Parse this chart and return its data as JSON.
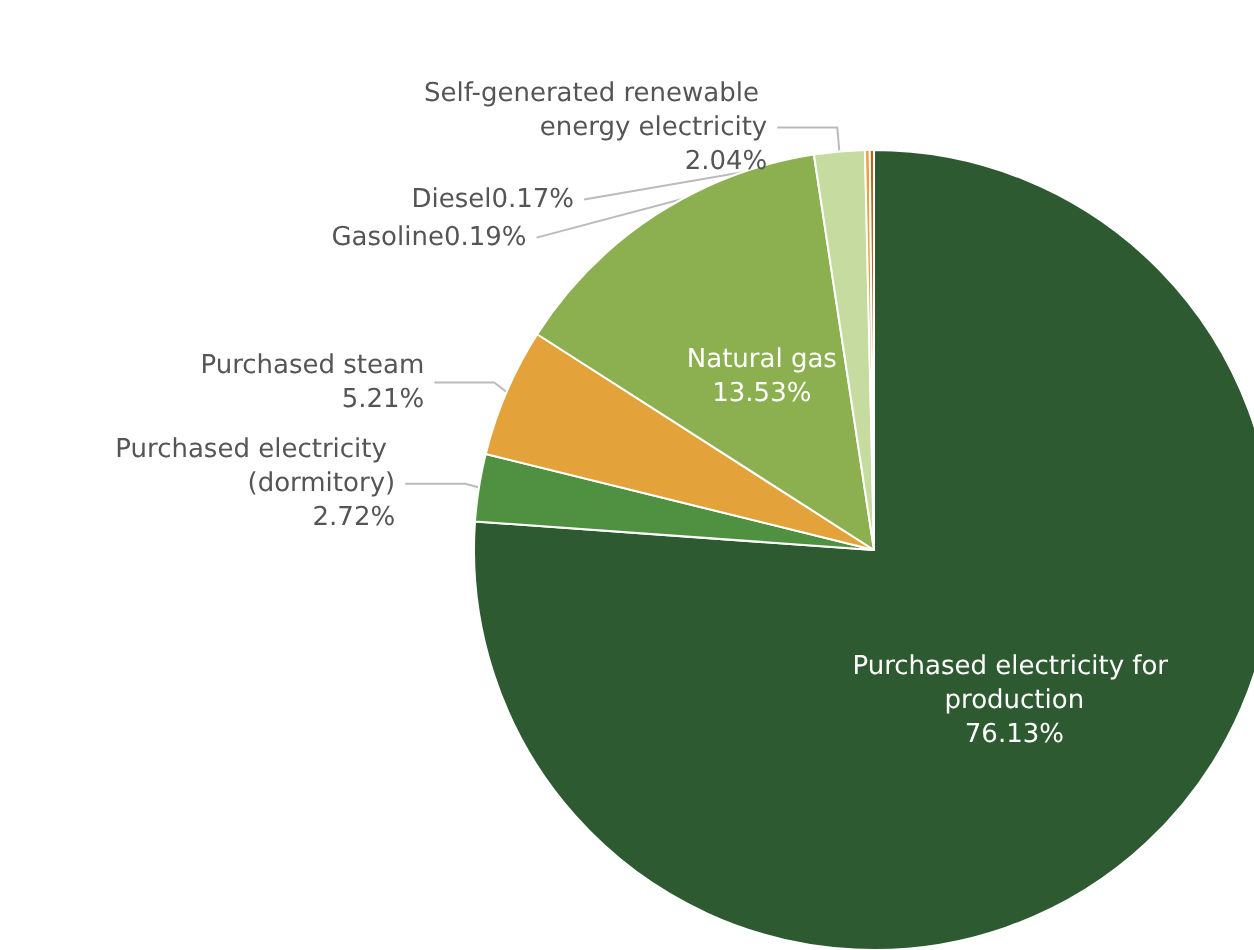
{
  "chart_data": {
    "type": "pie",
    "categories": [
      "Purchased electricity for production",
      "Purchased electricity (dormitory)",
      "Purchased steam",
      "Natural gas",
      "Self-generated renewable energy electricity",
      "Gasoline",
      "Diesel"
    ],
    "values": [
      76.13,
      2.72,
      5.21,
      13.53,
      2.04,
      0.19,
      0.17
    ],
    "value_labels": [
      "76.13%",
      "2.72%",
      "5.21%",
      "13.53%",
      "2.04%",
      "0.19%",
      "0.17%"
    ],
    "colors": [
      "#2e5a31",
      "#4f9140",
      "#e3a33a",
      "#8caf50",
      "#c5dba0",
      "#e8a040",
      "#b5651d"
    ],
    "legend": false
  }
}
